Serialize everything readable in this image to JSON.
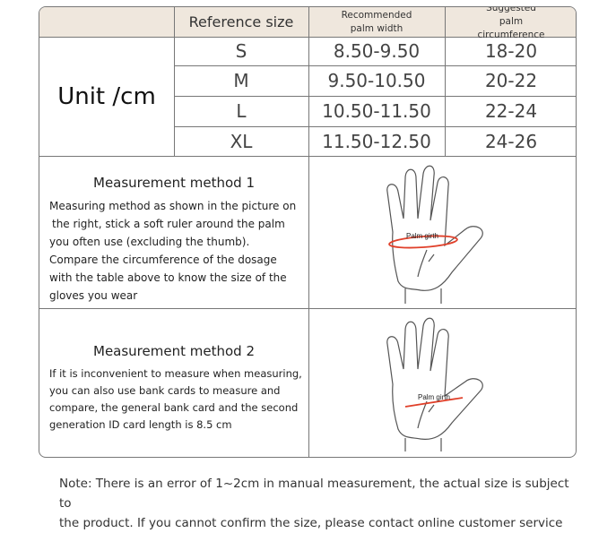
{
  "table": {
    "headers": [
      "Reference size",
      "Recommended palm width",
      "Suggested palm circumference"
    ],
    "unit_label": "Unit /cm",
    "rows": [
      {
        "size": "S",
        "width": "8.50-9.50",
        "circ": "18-20"
      },
      {
        "size": "M",
        "width": "9.50-10.50",
        "circ": "20-22"
      },
      {
        "size": "L",
        "width": "10.50-11.50",
        "circ": "22-24"
      },
      {
        "size": "XL",
        "width": "11.50-12.50",
        "circ": "24-26"
      }
    ],
    "header_color": "#efe7dd"
  },
  "method1": {
    "title": "Measurement method 1",
    "lines": [
      "Measuring method as shown in the picture on",
      "the right, stick a soft ruler around the palm",
      "you often use (excluding the thumb).",
      "Compare the circumference of the dosage",
      "with the table above to know the size of the",
      "gloves you wear"
    ],
    "figure_label": "Palm girth"
  },
  "method2": {
    "title": "Measurement method 2",
    "lines": [
      "If it is inconvenient to measure when measuring,",
      "you can also use bank cards to measure and",
      "compare, the general bank card and the second",
      "generation ID card length is 8.5 cm"
    ],
    "figure_label": "Palm girth"
  },
  "note": [
    "Note: There is an error of 1~2cm in manual measurement, the actual size is subject to",
    "the product. If you cannot confirm the size, please contact online customer service"
  ],
  "accent_color": "#e0402a"
}
